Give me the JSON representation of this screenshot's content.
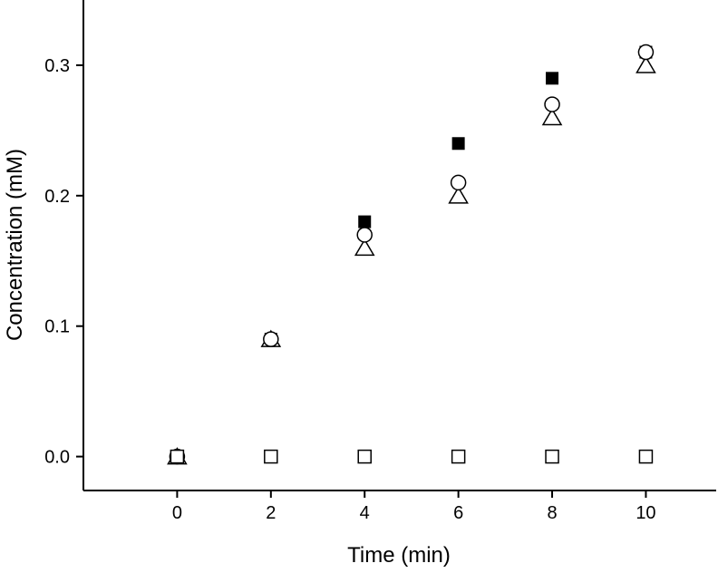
{
  "chart_data": {
    "type": "scatter",
    "title": "",
    "xlabel": "Time (min)",
    "ylabel": "Concentration (mM)",
    "xlim": [
      -2,
      11.5
    ],
    "ylim": [
      -0.026,
      0.35
    ],
    "x_ticks": [
      0,
      2,
      4,
      6,
      8,
      10
    ],
    "x_tick_labels": [
      "0",
      "2",
      "4",
      "6",
      "8",
      "10"
    ],
    "y_ticks": [
      0.0,
      0.1,
      0.2,
      0.3
    ],
    "y_tick_labels": [
      "0.0",
      "0.1",
      "0.2",
      "0.3"
    ],
    "grid": false,
    "legend": "none",
    "series": [
      {
        "marker": "filled-square",
        "color": "#000000",
        "x": [
          0,
          2,
          4,
          6,
          8,
          10
        ],
        "y": [
          0,
          0.09,
          0.18,
          0.24,
          0.29,
          0.31
        ]
      },
      {
        "marker": "open-triangle",
        "color": "#000000",
        "x": [
          0,
          2,
          4,
          6,
          8,
          10
        ],
        "y": [
          0,
          0.09,
          0.16,
          0.2,
          0.26,
          0.3
        ]
      },
      {
        "marker": "open-circle",
        "color": "#000000",
        "x": [
          0,
          2,
          4,
          6,
          8,
          10
        ],
        "y": [
          0,
          0.09,
          0.17,
          0.21,
          0.27,
          0.31
        ]
      },
      {
        "marker": "open-square",
        "color": "#000000",
        "x": [
          0,
          2,
          4,
          6,
          8,
          10
        ],
        "y": [
          0,
          0,
          0,
          0,
          0,
          0
        ]
      }
    ]
  }
}
